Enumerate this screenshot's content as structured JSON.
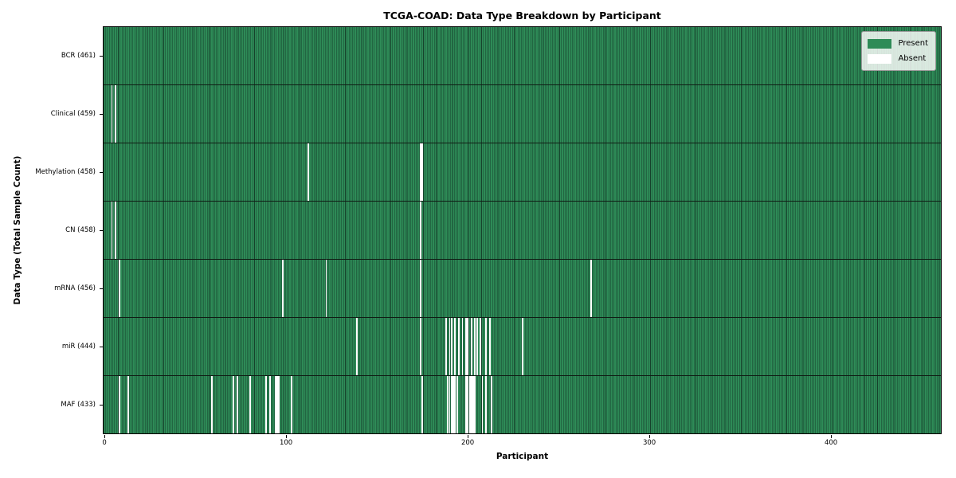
{
  "chart_data": {
    "type": "heatmap",
    "title": "TCGA-COAD: Data Type Breakdown by Participant",
    "xlabel": "Participant",
    "ylabel": "Data Type (Total Sample Count)",
    "n_participants": 461,
    "x_ticks": [
      0,
      100,
      200,
      300,
      400
    ],
    "x_range": [
      -0.5,
      460.5
    ],
    "grid": false,
    "legend": {
      "position": "upper-right",
      "present_label": "Present",
      "absent_label": "Absent"
    },
    "colors": {
      "present": "#2e8b57",
      "present_edge": "#16422c",
      "absent": "#ffffff",
      "row_separator": "#101c14"
    },
    "rows": [
      {
        "name": "BCR",
        "total": 461,
        "label": "BCR (461)",
        "absent_participants": []
      },
      {
        "name": "Clinical",
        "total": 459,
        "label": "Clinical (459)",
        "absent_participants": [
          4,
          6
        ]
      },
      {
        "name": "Methylation",
        "total": 458,
        "label": "Methylation (458)",
        "absent_participants": [
          112,
          174,
          175
        ]
      },
      {
        "name": "CN",
        "total": 458,
        "label": "CN (458)",
        "absent_participants": [
          4,
          6,
          174
        ]
      },
      {
        "name": "mRNA",
        "total": 456,
        "label": "mRNA (456)",
        "absent_participants": [
          8,
          98,
          122,
          174,
          268
        ]
      },
      {
        "name": "miR",
        "total": 444,
        "label": "miR (444)",
        "absent_participants": [
          139,
          174,
          188,
          190,
          191,
          193,
          195,
          197,
          199,
          200,
          202,
          204,
          205,
          207,
          210,
          212,
          230
        ]
      },
      {
        "name": "MAF",
        "total": 433,
        "label": "MAF (433)",
        "absent_participants": [
          8,
          13,
          59,
          71,
          73,
          80,
          89,
          91,
          94,
          95,
          96,
          103,
          175,
          189,
          190,
          191,
          192,
          193,
          194,
          199,
          200,
          201,
          202,
          203,
          204,
          208,
          210,
          213
        ]
      }
    ]
  }
}
